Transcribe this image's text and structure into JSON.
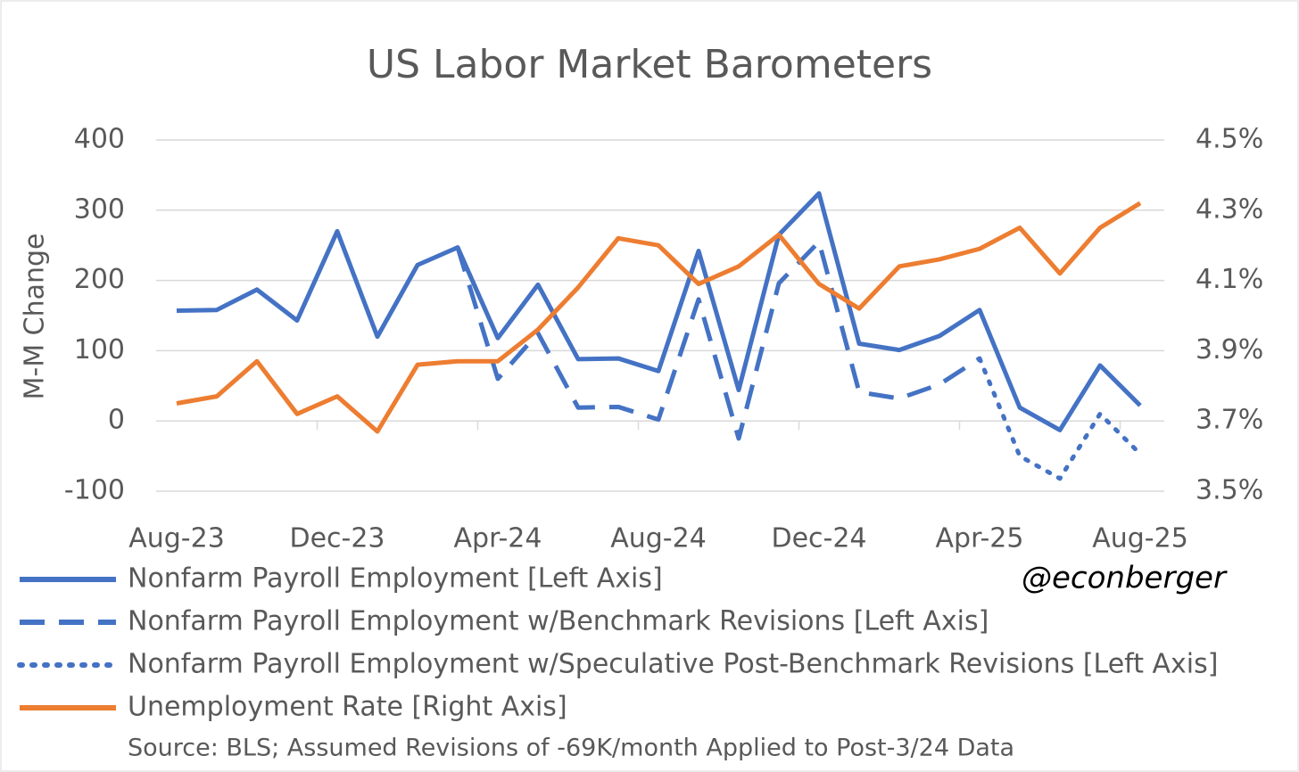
{
  "chart_data": {
    "type": "line",
    "title": "US Labor Market Barometers",
    "ylabel": "M-M Change",
    "annotation": "@econberger",
    "source": "Source: BLS; Assumed Revisions of -69K/month Applied to Post-3/24 Data",
    "categories": [
      "Aug-23",
      null,
      null,
      null,
      "Dec-23",
      null,
      null,
      null,
      "Apr-24",
      null,
      null,
      null,
      "Aug-24",
      null,
      null,
      null,
      "Dec-24",
      null,
      null,
      null,
      "Apr-25",
      null,
      null,
      null,
      "Aug-25"
    ],
    "ylim": [
      -100,
      400
    ],
    "yticks": [
      -100,
      0,
      100,
      200,
      300,
      400
    ],
    "y2lim": [
      3.5,
      4.5
    ],
    "y2ticks": [
      {
        "value": 3.5,
        "label": "3.5%"
      },
      {
        "value": 3.7,
        "label": "3.7%"
      },
      {
        "value": 3.9,
        "label": "3.9%"
      },
      {
        "value": 4.1,
        "label": "4.1%"
      },
      {
        "value": 4.3,
        "label": "4.3%"
      },
      {
        "value": 4.5,
        "label": "4.5%"
      }
    ],
    "grid": true,
    "series": [
      {
        "name": "Nonfarm Payroll Employment [Left Axis]",
        "color": "#4472c4",
        "dash": "solid",
        "values": [
          157,
          158,
          187,
          143,
          270,
          120,
          222,
          247,
          118,
          194,
          88,
          89,
          71,
          242,
          44,
          265,
          324,
          110,
          101,
          121,
          158,
          19,
          -13,
          79,
          22
        ]
      },
      {
        "name": "Nonfarm Payroll Employment w/Benchmark Revisions [Left Axis]",
        "color": "#4472c4",
        "dash": "dashed",
        "values": [
          null,
          null,
          null,
          null,
          null,
          null,
          null,
          247,
          60,
          125,
          19,
          20,
          2,
          173,
          -25,
          196,
          255,
          41,
          32,
          52,
          89,
          null,
          null,
          null,
          null
        ]
      },
      {
        "name": "Nonfarm Payroll Employment w/Speculative Post-Benchmark Revisions [Left Axis]",
        "color": "#4472c4",
        "dash": "dotted",
        "values": [
          null,
          null,
          null,
          null,
          null,
          null,
          null,
          null,
          null,
          null,
          null,
          null,
          null,
          null,
          null,
          null,
          null,
          null,
          null,
          null,
          89,
          -50,
          -82,
          10,
          -47
        ]
      },
      {
        "name": "Unemployment Rate [Right Axis]",
        "color": "#ed7d31",
        "dash": "solid",
        "axis": "y2",
        "values": [
          3.75,
          3.77,
          3.87,
          3.72,
          3.77,
          3.67,
          3.86,
          3.87,
          3.87,
          3.96,
          4.08,
          4.22,
          4.2,
          4.09,
          4.14,
          4.23,
          4.09,
          4.02,
          4.14,
          4.16,
          4.19,
          4.25,
          4.12,
          4.25,
          4.32
        ]
      }
    ]
  }
}
